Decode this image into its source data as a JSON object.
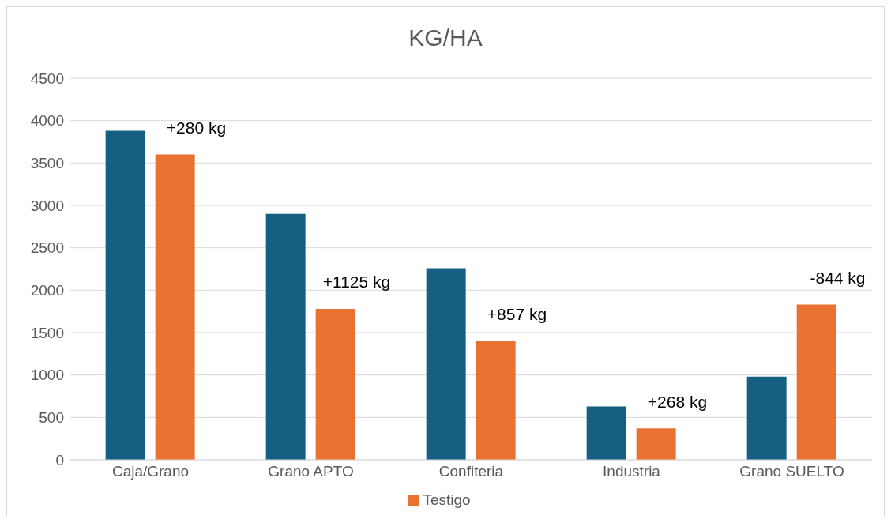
{
  "chart_data": {
    "type": "bar",
    "title": "KG/HA",
    "categories": [
      "Caja/Grano",
      "Grano APTO",
      "Confiteria",
      "Industria",
      "Grano SUELTO"
    ],
    "series": [
      {
        "color": "#156082",
        "values": [
          3880,
          2900,
          2260,
          630,
          980
        ]
      },
      {
        "name": "Testigo",
        "color": "#e97132",
        "values": [
          3600,
          1780,
          1400,
          370,
          1830
        ]
      }
    ],
    "ylim": [
      0,
      4500
    ],
    "yticks": [
      0,
      500,
      1000,
      1500,
      2000,
      2500,
      3000,
      3500,
      4000,
      4500
    ],
    "grid": "y",
    "legend": "bottom",
    "annotations": [
      "+280 kg",
      "+1125 kg",
      "+857 kg",
      "+268 kg",
      "-844 kg"
    ]
  }
}
